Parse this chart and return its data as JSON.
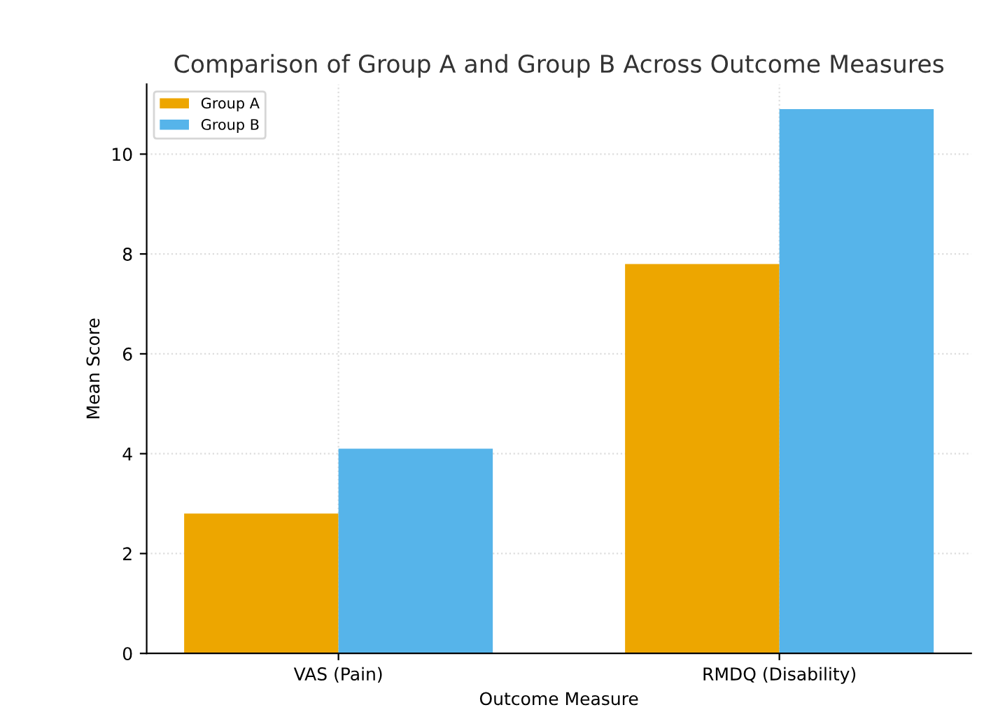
{
  "chart_data": {
    "type": "bar",
    "title": "Comparison of Group A and Group B Across Outcome Measures",
    "xlabel": "Outcome Measure",
    "ylabel": "Mean Score",
    "categories": [
      "VAS (Pain)",
      "RMDQ (Disability)"
    ],
    "series": [
      {
        "name": "Group A",
        "color": "#eda600",
        "values": [
          2.8,
          7.8
        ]
      },
      {
        "name": "Group B",
        "color": "#56b4ea",
        "values": [
          4.1,
          10.9
        ]
      }
    ],
    "ylim": [
      0,
      11.4
    ],
    "yticks": [
      0,
      2,
      4,
      6,
      8,
      10
    ],
    "grid": true,
    "legend": "top left"
  }
}
